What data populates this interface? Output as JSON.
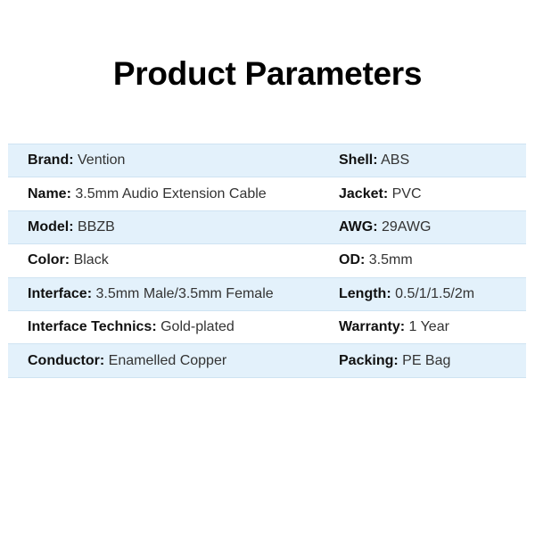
{
  "title": "Product Parameters",
  "rows": [
    {
      "left": {
        "label": "Brand:",
        "value": "Vention"
      },
      "right": {
        "label": "Shell:",
        "value": "ABS"
      }
    },
    {
      "left": {
        "label": "Name:",
        "value": "3.5mm Audio Extension Cable"
      },
      "right": {
        "label": "Jacket:",
        "value": "PVC"
      }
    },
    {
      "left": {
        "label": "Model:",
        "value": "BBZB"
      },
      "right": {
        "label": "AWG:",
        "value": "29AWG"
      }
    },
    {
      "left": {
        "label": "Color:",
        "value": "Black"
      },
      "right": {
        "label": "OD:",
        "value": "3.5mm"
      }
    },
    {
      "left": {
        "label": "Interface:",
        "value": "3.5mm Male/3.5mm Female"
      },
      "right": {
        "label": "Length:",
        "value": "0.5/1/1.5/2m"
      }
    },
    {
      "left": {
        "label": "Interface Technics:",
        "value": "Gold-plated"
      },
      "right": {
        "label": "Warranty:",
        "value": "1 Year"
      }
    },
    {
      "left": {
        "label": "Conductor:",
        "value": "Enamelled Copper"
      },
      "right": {
        "label": "Packing:",
        "value": "PE Bag"
      }
    }
  ],
  "colors": {
    "row_alt": "#e3f1fb",
    "border": "#cfe3f2"
  }
}
